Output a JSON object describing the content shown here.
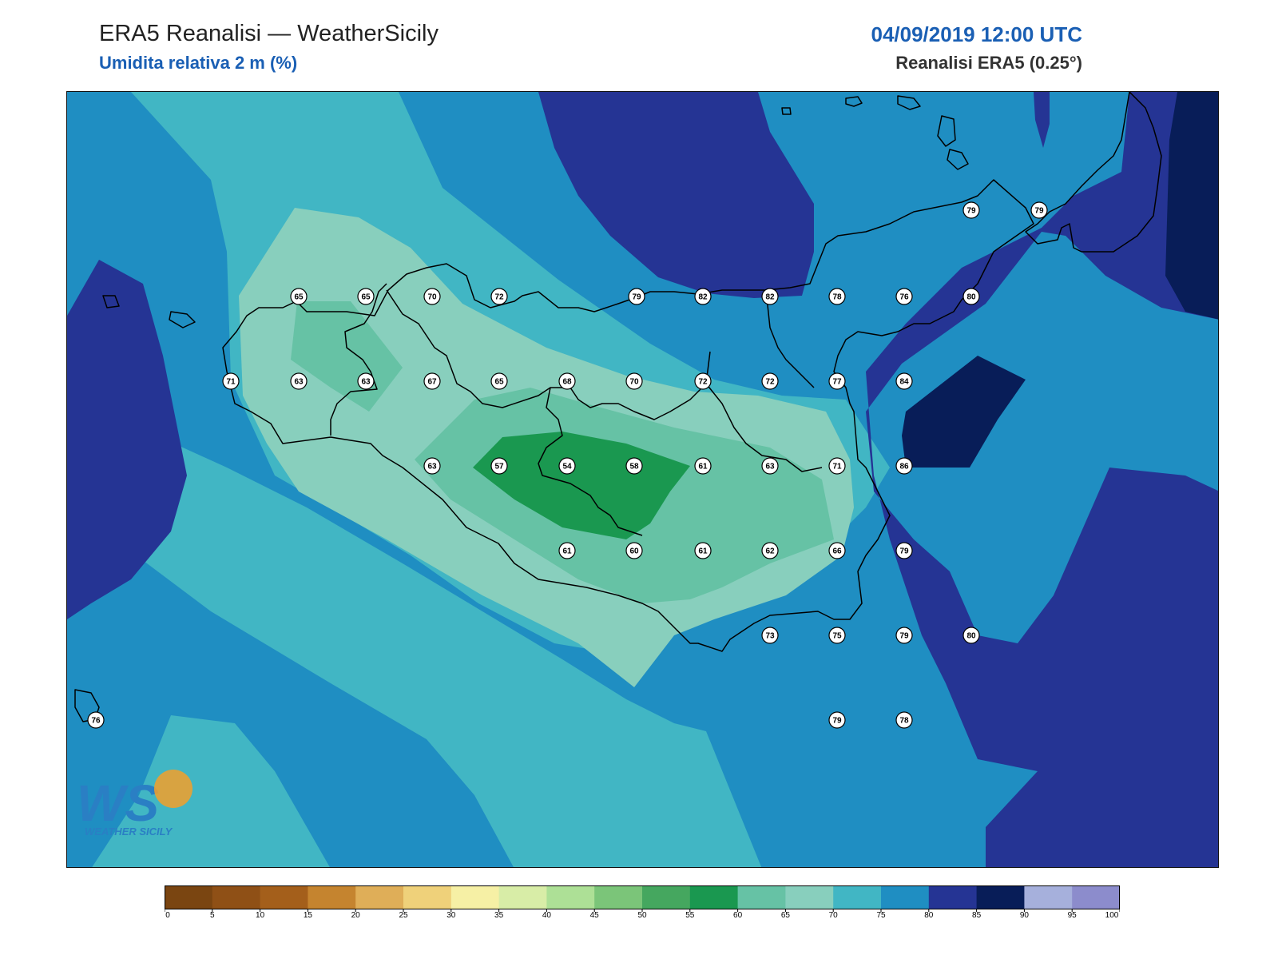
{
  "header": {
    "title": "ERA5 Reanalisi — WeatherSicily",
    "subtitle": "Umidita relativa 2 m (%)",
    "datetime": "04/09/2019 12:00 UTC",
    "source": "Reanalisi ERA5 (0.25°)"
  },
  "logo": {
    "letters": "WS",
    "caption": "WEATHER SICILY"
  },
  "colorbar": {
    "ticks": [
      "0",
      "5",
      "10",
      "15",
      "20",
      "25",
      "30",
      "35",
      "40",
      "45",
      "50",
      "55",
      "60",
      "65",
      "70",
      "75",
      "80",
      "85",
      "90",
      "95",
      "100"
    ],
    "colors": [
      "#7a4511",
      "#8f5016",
      "#a45f1b",
      "#c5842f",
      "#dfae58",
      "#efd17a",
      "#f6f0a5",
      "#d8eda7",
      "#ade096",
      "#7bc579",
      "#45a75f",
      "#1a9850",
      "#66c2a5",
      "#88cfbd",
      "#41b6c4",
      "#1f8ec2",
      "#253494",
      "#081d58",
      "#a6b0dc",
      "#8c8ccc"
    ]
  },
  "map": {
    "colors": {
      "rh70_75": "#41b6c4",
      "rh75_80": "#1f8ec2",
      "rh80_85": "#253494",
      "rh85_90": "#081d58",
      "rh65_70": "#88cfbd",
      "rh60_65": "#66c2a5",
      "rh55_60": "#1a9850"
    },
    "stations": [
      {
        "v": "65"
      },
      {
        "v": "65"
      },
      {
        "v": "70"
      },
      {
        "v": "72"
      },
      {
        "v": "79"
      },
      {
        "v": "82"
      },
      {
        "v": "82"
      },
      {
        "v": "78"
      },
      {
        "v": "76"
      },
      {
        "v": "80"
      },
      {
        "v": "71"
      },
      {
        "v": "63"
      },
      {
        "v": "63"
      },
      {
        "v": "67"
      },
      {
        "v": "65"
      },
      {
        "v": "68"
      },
      {
        "v": "70"
      },
      {
        "v": "72"
      },
      {
        "v": "72"
      },
      {
        "v": "77"
      },
      {
        "v": "84"
      },
      {
        "v": "63"
      },
      {
        "v": "57"
      },
      {
        "v": "54"
      },
      {
        "v": "58"
      },
      {
        "v": "61"
      },
      {
        "v": "63"
      },
      {
        "v": "71"
      },
      {
        "v": "86"
      },
      {
        "v": "61"
      },
      {
        "v": "60"
      },
      {
        "v": "61"
      },
      {
        "v": "62"
      },
      {
        "v": "66"
      },
      {
        "v": "79"
      },
      {
        "v": "73"
      },
      {
        "v": "75"
      },
      {
        "v": "79"
      },
      {
        "v": "80"
      },
      {
        "v": "79"
      },
      {
        "v": "78"
      },
      {
        "v": "79"
      },
      {
        "v": "79"
      },
      {
        "v": "76"
      }
    ]
  }
}
